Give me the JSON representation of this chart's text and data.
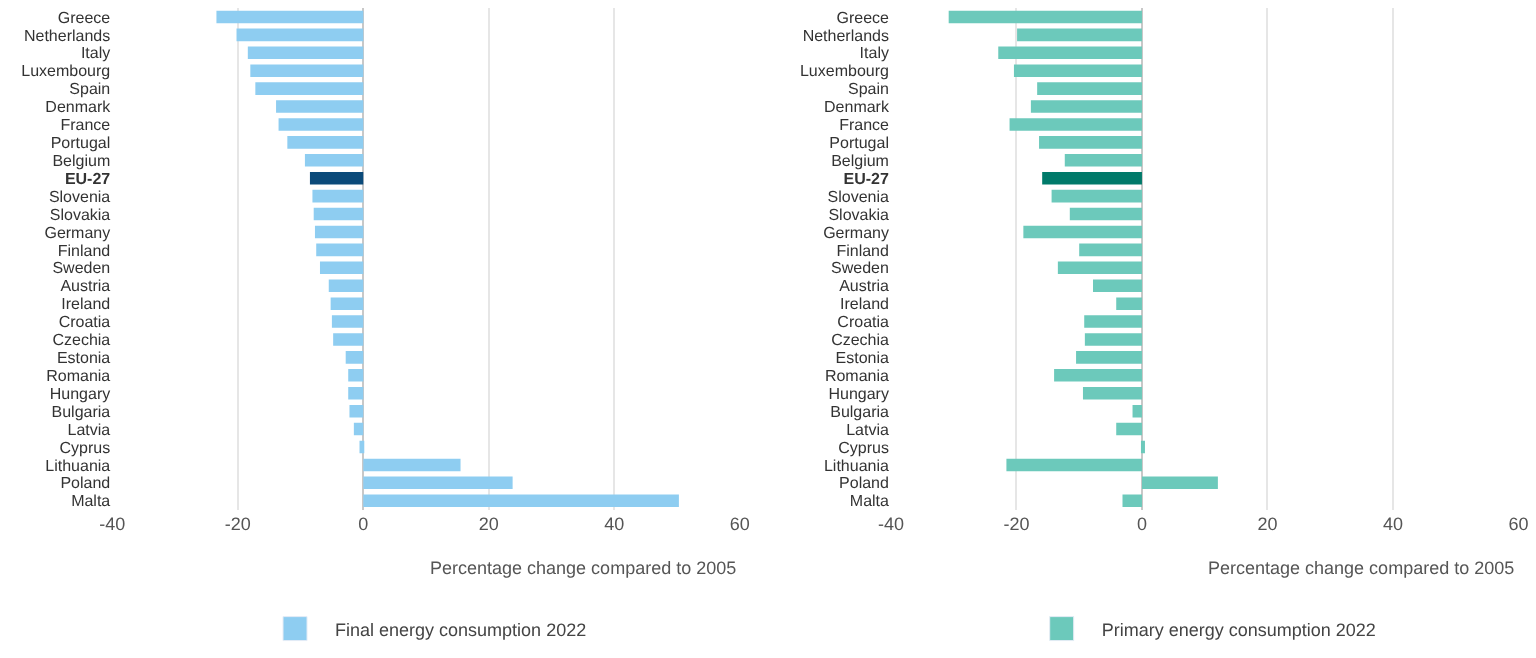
{
  "chart_data": [
    {
      "type": "bar",
      "orientation": "horizontal",
      "categories": [
        "Greece",
        "Netherlands",
        "Italy",
        "Luxembourg",
        "Spain",
        "Denmark",
        "France",
        "Portugal",
        "Belgium",
        "EU-27",
        "Slovenia",
        "Slovakia",
        "Germany",
        "Finland",
        "Sweden",
        "Austria",
        "Ireland",
        "Croatia",
        "Czechia",
        "Estonia",
        "Romania",
        "Hungary",
        "Bulgaria",
        "Latvia",
        "Cyprus",
        "Lithuania",
        "Poland",
        "Malta"
      ],
      "series": [
        {
          "name": "Final energy consumption 2022",
          "color": "#8ecdf1",
          "colors": [
            "#8ecdf1",
            "#8ecdf1",
            "#8ecdf1",
            "#8ecdf1",
            "#8ecdf1",
            "#8ecdf1",
            "#8ecdf1",
            "#8ecdf1",
            "#8ecdf1",
            "#0b4a7a",
            "#8ecdf1",
            "#8ecdf1",
            "#8ecdf1",
            "#8ecdf1",
            "#8ecdf1",
            "#8ecdf1",
            "#8ecdf1",
            "#8ecdf1",
            "#8ecdf1",
            "#8ecdf1",
            "#8ecdf1",
            "#8ecdf1",
            "#8ecdf1",
            "#8ecdf1",
            "#8ecdf1",
            "#8ecdf1",
            "#8ecdf1",
            "#8ecdf1"
          ],
          "values": [
            -23.4,
            -20.2,
            -18.4,
            -18.0,
            -17.2,
            -13.9,
            -13.5,
            -12.1,
            -9.3,
            -8.5,
            -8.1,
            -7.9,
            -7.7,
            -7.5,
            -6.9,
            -5.5,
            -5.2,
            -5.0,
            -4.8,
            -2.8,
            -2.4,
            -2.4,
            -2.2,
            -1.5,
            -0.6,
            15.5,
            23.8,
            50.3
          ]
        }
      ],
      "xlabel": "Percentage change compared to 2005",
      "xlim": [
        -40,
        60
      ],
      "xticks": [
        -40,
        -20,
        0,
        20,
        40,
        60
      ],
      "grid": "x",
      "legend": "bottom"
    },
    {
      "type": "bar",
      "orientation": "horizontal",
      "categories": [
        "Greece",
        "Netherlands",
        "Italy",
        "Luxembourg",
        "Spain",
        "Denmark",
        "France",
        "Portugal",
        "Belgium",
        "EU-27",
        "Slovenia",
        "Slovakia",
        "Germany",
        "Finland",
        "Sweden",
        "Austria",
        "Ireland",
        "Croatia",
        "Czechia",
        "Estonia",
        "Romania",
        "Hungary",
        "Bulgaria",
        "Latvia",
        "Cyprus",
        "Lithuania",
        "Poland",
        "Malta"
      ],
      "series": [
        {
          "name": "Primary energy consumption 2022",
          "color": "#6cc9bb",
          "colors": [
            "#6cc9bb",
            "#6cc9bb",
            "#6cc9bb",
            "#6cc9bb",
            "#6cc9bb",
            "#6cc9bb",
            "#6cc9bb",
            "#6cc9bb",
            "#6cc9bb",
            "#007a6a",
            "#6cc9bb",
            "#6cc9bb",
            "#6cc9bb",
            "#6cc9bb",
            "#6cc9bb",
            "#6cc9bb",
            "#6cc9bb",
            "#6cc9bb",
            "#6cc9bb",
            "#6cc9bb",
            "#6cc9bb",
            "#6cc9bb",
            "#6cc9bb",
            "#6cc9bb",
            "#6cc9bb",
            "#6cc9bb",
            "#6cc9bb",
            "#6cc9bb"
          ],
          "values": [
            -30.8,
            -19.9,
            -22.9,
            -20.4,
            -16.7,
            -17.7,
            -21.1,
            -16.4,
            -12.3,
            -15.9,
            -14.4,
            -11.5,
            -18.9,
            -10.0,
            -13.4,
            -7.8,
            -4.1,
            -9.2,
            -9.1,
            -10.5,
            -14.0,
            -9.4,
            -1.5,
            -4.1,
            0.2,
            -21.6,
            12.1,
            -3.1
          ]
        }
      ],
      "xlabel": "Percentage change compared to 2005",
      "xlim": [
        -40,
        60
      ],
      "xticks": [
        -40,
        -20,
        0,
        20,
        40,
        60
      ],
      "grid": "x",
      "legend": "bottom"
    }
  ]
}
